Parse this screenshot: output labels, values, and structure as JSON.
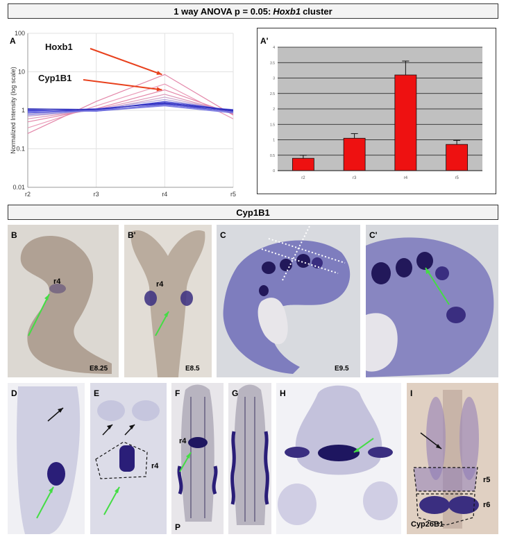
{
  "header1": {
    "prefix": "1 way ANOVA p = 0.05: ",
    "gene": "Hoxb1",
    "suffix": " cluster"
  },
  "header2": {
    "title": "Cyp1B1"
  },
  "panelA": {
    "letter": "A",
    "ylabel": "Normalized Intensity (log scale)",
    "ytick_labels": [
      "100",
      "10",
      "1",
      "0.1",
      "0.01"
    ],
    "xtick_labels": [
      "r2",
      "r3",
      "r4",
      "r5"
    ],
    "annotations": [
      {
        "label": "Hoxb1"
      },
      {
        "label": "Cyp1B1"
      }
    ],
    "arrow_color": "#e8401c"
  },
  "chart_data": [
    {
      "type": "line",
      "title": "",
      "xlabel": "",
      "ylabel": "Normalized Intensity (log scale)",
      "ylim": [
        0.01,
        100
      ],
      "log_scale": true,
      "grid": true,
      "categories": [
        "r2",
        "r3",
        "r4",
        "r5"
      ],
      "series": [
        {
          "values": [
            0.25,
            1.7,
            8.5,
            0.75
          ],
          "color": "#e07aa0"
        },
        {
          "values": [
            0.5,
            1.1,
            3.4,
            0.8
          ],
          "color": "#e07aa0"
        },
        {
          "values": [
            0.35,
            1.3,
            4.8,
            0.6
          ],
          "color": "#e890b0"
        },
        {
          "values": [
            0.6,
            1.05,
            2.6,
            0.85
          ],
          "color": "#d88ab0"
        },
        {
          "values": [
            0.7,
            1.0,
            2.2,
            0.9
          ],
          "color": "#c8a0c8"
        },
        {
          "values": [
            0.8,
            1.05,
            1.9,
            0.95
          ],
          "color": "#a99ad8"
        },
        {
          "values": [
            0.9,
            1.0,
            1.7,
            1.0
          ],
          "color": "#3a3ad0"
        },
        {
          "values": [
            1.0,
            1.05,
            1.6,
            0.95
          ],
          "color": "#2a2ac8"
        },
        {
          "values": [
            0.95,
            1.1,
            1.5,
            0.9
          ],
          "color": "#4a4ae0"
        },
        {
          "values": [
            1.05,
            0.95,
            1.45,
            0.9
          ],
          "color": "#3030c0"
        },
        {
          "values": [
            0.85,
            1.0,
            1.4,
            1.05
          ],
          "color": "#5a5ad8"
        },
        {
          "values": [
            0.9,
            0.95,
            1.3,
            0.85
          ],
          "color": "#6a6ae0"
        },
        {
          "values": [
            1.1,
            1.05,
            1.55,
            1.0
          ],
          "color": "#2020b0"
        },
        {
          "values": [
            0.75,
            1.0,
            1.35,
            0.9
          ],
          "color": "#8080e0"
        }
      ]
    },
    {
      "type": "bar",
      "title": "",
      "xlabel": "",
      "ylabel": "",
      "ylim": [
        0,
        4
      ],
      "grid": true,
      "categories": [
        "r2",
        "r3",
        "r4",
        "r5"
      ],
      "values": [
        0.4,
        1.05,
        3.1,
        0.85
      ],
      "errors": [
        0.1,
        0.15,
        0.45,
        0.13
      ],
      "ytick_labels": [
        "0",
        "0.5",
        "1",
        "1.5",
        "2",
        "2.5",
        "3",
        "3.5",
        "4"
      ],
      "letter": "A'",
      "bar_color": "#ee1111"
    }
  ],
  "photos": {
    "B": {
      "letter": "B",
      "label": "r4",
      "stage": "E8.25"
    },
    "Bp": {
      "letter": "B'",
      "label": "r4",
      "stage": "E8.5"
    },
    "C": {
      "letter": "C",
      "stage": "E9.5"
    },
    "Cp": {
      "letter": "C'"
    },
    "D": {
      "letter": "D"
    },
    "E": {
      "letter": "E",
      "label": "r4"
    },
    "F": {
      "letter": "F",
      "label": "r4",
      "bottom": "P"
    },
    "G": {
      "letter": "G"
    },
    "H": {
      "letter": "H"
    },
    "I": {
      "letter": "I",
      "label1": "r5",
      "label2": "r6",
      "gene": "Cyp26B1"
    }
  }
}
